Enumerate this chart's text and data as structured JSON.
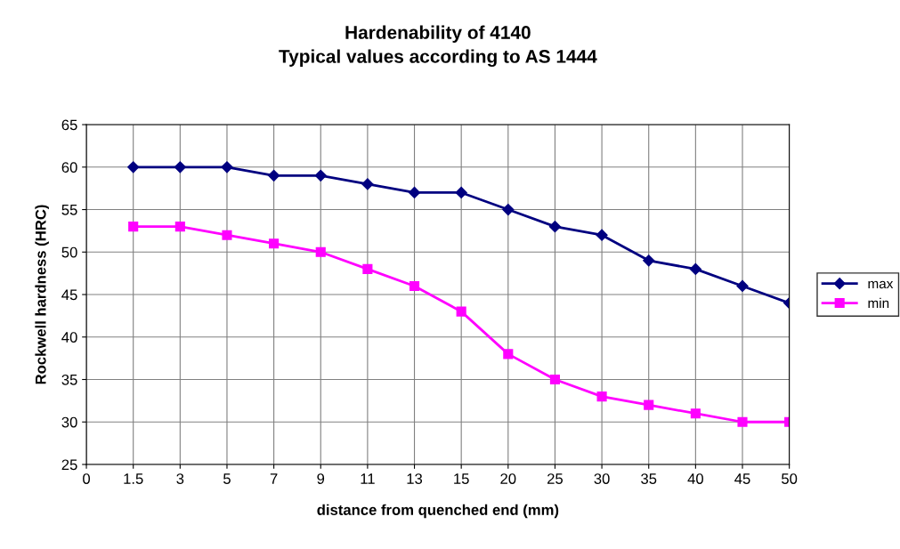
{
  "chart_data": {
    "type": "line",
    "title": "Hardenability of 4140\nTypical values according to AS 1444",
    "xlabel": "distance from quenched end (mm)",
    "ylabel": "Rockwell hardness (HRC)",
    "categories": [
      "0",
      "1.5",
      "3",
      "5",
      "7",
      "9",
      "11",
      "13",
      "15",
      "20",
      "25",
      "30",
      "35",
      "40",
      "45",
      "50"
    ],
    "series": [
      {
        "name": "max",
        "color": "#000080",
        "marker": "diamond",
        "values": [
          null,
          60,
          60,
          60,
          59,
          59,
          58,
          57,
          57,
          55,
          53,
          52,
          49,
          48,
          46,
          44
        ]
      },
      {
        "name": "min",
        "color": "#ff00ff",
        "marker": "square",
        "values": [
          null,
          53,
          53,
          52,
          51,
          50,
          48,
          46,
          43,
          38,
          35,
          33,
          32,
          31,
          30,
          30
        ]
      }
    ],
    "ylim": [
      25,
      65
    ],
    "yticks": [
      25,
      30,
      35,
      40,
      45,
      50,
      55,
      60,
      65
    ],
    "grid": true,
    "legend": "right"
  }
}
